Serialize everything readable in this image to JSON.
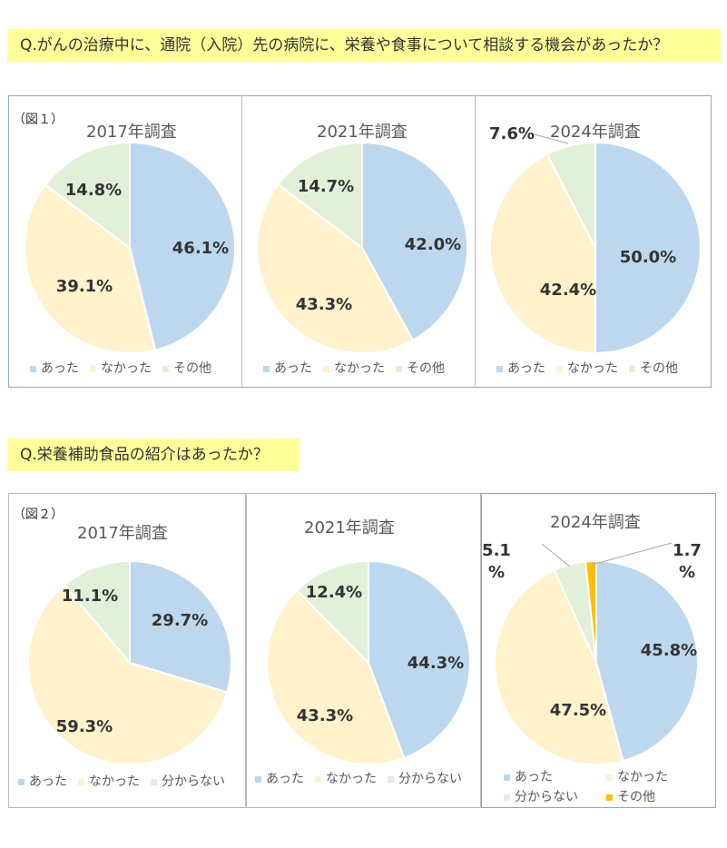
{
  "section1": {
    "question": "Q.がんの治療中に、通院（入院）先の病院に、栄養や食事について相談する機会があったか？",
    "figure_label": "（図１）"
  },
  "section2": {
    "question": "Q.栄養補助食品の紹介はあったか？",
    "figure_label": "（図２）"
  },
  "colors": {
    "blue": "#bdd7ee",
    "yellow": "#fff2cc",
    "green": "#e2f0d9",
    "gold": "#ffc000"
  },
  "chart_data": [
    {
      "type": "pie",
      "title": "2017年調査",
      "categories": [
        "あった",
        "なかった",
        "その他"
      ],
      "values": [
        46.1,
        39.1,
        14.8
      ],
      "labels": [
        "46.1%",
        "39.1%",
        "14.8%"
      ]
    },
    {
      "type": "pie",
      "title": "2021年調査",
      "categories": [
        "あった",
        "なかった",
        "その他"
      ],
      "values": [
        42.0,
        43.3,
        14.7
      ],
      "labels": [
        "42.0%",
        "43.3%",
        "14.7%"
      ]
    },
    {
      "type": "pie",
      "title": "2024年調査",
      "categories": [
        "あった",
        "なかった",
        "その他"
      ],
      "values": [
        50.0,
        42.4,
        7.6
      ],
      "labels": [
        "50.0%",
        "42.4%",
        "7.6%"
      ]
    },
    {
      "type": "pie",
      "title": "2017年調査",
      "categories": [
        "あった",
        "なかった",
        "分からない"
      ],
      "values": [
        29.7,
        59.3,
        11.1
      ],
      "labels": [
        "29.7%",
        "59.3%",
        "11.1%"
      ]
    },
    {
      "type": "pie",
      "title": "2021年調査",
      "categories": [
        "あった",
        "なかった",
        "分からない"
      ],
      "values": [
        44.3,
        43.3,
        12.4
      ],
      "labels": [
        "44.3%",
        "43.3%",
        "12.4%"
      ]
    },
    {
      "type": "pie",
      "title": "2024年調査",
      "categories": [
        "あった",
        "なかった",
        "分からない",
        "その他"
      ],
      "values": [
        45.8,
        47.5,
        5.1,
        1.7
      ],
      "labels": [
        "45.8%",
        "47.5%",
        "5.1\n%",
        "1.7\n%"
      ]
    }
  ]
}
